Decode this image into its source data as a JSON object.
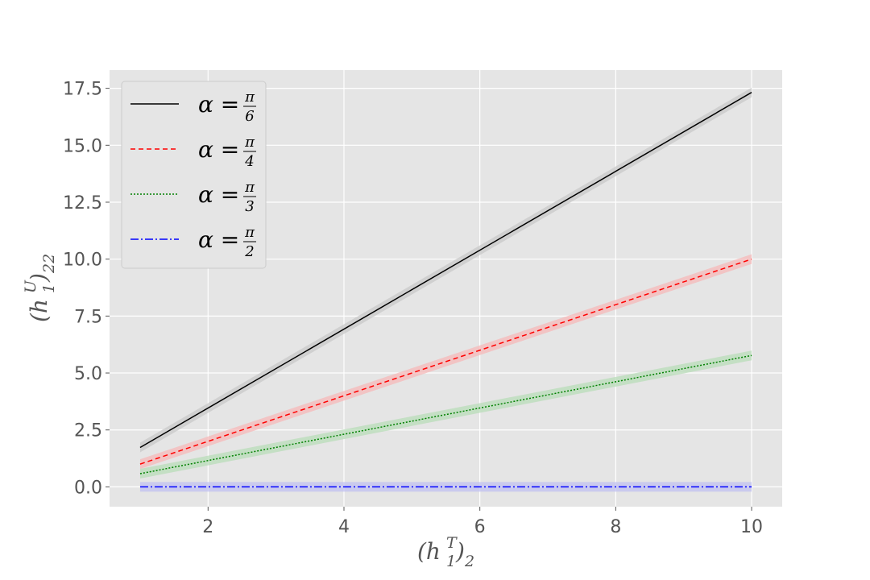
{
  "chart_data": {
    "type": "line",
    "xlabel": "(h_1^T)_2",
    "ylabel": "(h_1^U)_22",
    "xlim": [
      0.55,
      10.45
    ],
    "ylim": [
      -0.87,
      18.3
    ],
    "xticks": [
      2,
      4,
      6,
      8,
      10
    ],
    "xtick_labels": [
      "2",
      "4",
      "6",
      "8",
      "10"
    ],
    "yticks": [
      0.0,
      2.5,
      5.0,
      7.5,
      10.0,
      12.5,
      15.0,
      17.5
    ],
    "ytick_labels": [
      "0.0",
      "2.5",
      "5.0",
      "7.5",
      "10.0",
      "12.5",
      "15.0",
      "17.5"
    ],
    "grid": true,
    "legend_position": "top-left",
    "x": [
      1,
      10
    ],
    "series": [
      {
        "name": "α = π/6",
        "frac_num": "π",
        "frac_den": "6",
        "values": [
          1.73,
          17.32
        ],
        "color": "#000000",
        "dash": "",
        "band_color": "#c8c8c8"
      },
      {
        "name": "α = π/4",
        "frac_num": "π",
        "frac_den": "4",
        "values": [
          1.0,
          10.0
        ],
        "color": "#ff0000",
        "dash": "6,4",
        "band_color": "#f5b8b8"
      },
      {
        "name": "α = π/3",
        "frac_num": "π",
        "frac_den": "3",
        "values": [
          0.58,
          5.77
        ],
        "color": "#008000",
        "dash": "2,2",
        "band_color": "#b8dcb8"
      },
      {
        "name": "α = π/2",
        "frac_num": "π",
        "frac_den": "2",
        "values": [
          0.0,
          0.0
        ],
        "color": "#0000ff",
        "dash": "10,3,2,3",
        "band_color": "#c0c0f0"
      }
    ]
  }
}
